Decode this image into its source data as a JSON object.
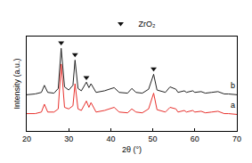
{
  "chart_data": {
    "type": "line",
    "x_label": "2θ (°)",
    "y_label": "Intensity (a.u.)",
    "xlim": [
      20,
      70
    ],
    "xticks": [
      20,
      30,
      40,
      50,
      60,
      70
    ],
    "ylim": [
      0,
      120
    ],
    "tick_labels": "x",
    "grid": false,
    "legend": "top",
    "x": [
      20,
      22,
      23.5,
      24.2,
      25,
      26.5,
      27.5,
      28.2,
      29,
      30,
      31,
      31.5,
      32.2,
      33,
      34.2,
      34.8,
      35.3,
      36.5,
      38.5,
      40.8,
      42,
      44,
      45,
      46,
      47.5,
      49,
      50.2,
      51,
      53,
      54.1,
      55.5,
      56,
      57.5,
      58,
      59.5,
      60,
      61.5,
      62.5,
      64,
      65.5,
      67,
      68,
      70
    ],
    "series": [
      {
        "name": "a",
        "color": "#e8302c",
        "type": "line",
        "values": [
          22,
          22,
          24,
          34,
          24,
          24,
          28,
          85,
          30,
          28,
          32,
          60,
          28,
          26,
          38,
          30,
          36,
          24,
          26,
          30,
          24,
          23,
          28,
          24,
          23,
          28,
          48,
          27,
          24,
          30,
          28,
          24,
          26,
          24,
          26,
          24,
          25,
          23,
          24,
          25,
          22,
          22,
          21
        ]
      },
      {
        "name": "b",
        "color": "#222222",
        "type": "line",
        "values": [
          46,
          47,
          49,
          58,
          49,
          48,
          54,
          105,
          56,
          52,
          58,
          90,
          54,
          51,
          62,
          55,
          60,
          49,
          51,
          55,
          49,
          48,
          54,
          49,
          48,
          53,
          72,
          52,
          49,
          56,
          53,
          49,
          51,
          49,
          51,
          49,
          50,
          48,
          49,
          50,
          47,
          47,
          46
        ]
      },
      {
        "name": "ZrO₂",
        "color": "#111111",
        "type": "scatter",
        "marker": "triangle-down",
        "x": [
          28.2,
          31.5,
          34.2,
          50.2
        ],
        "values": [
          112,
          97,
          68,
          79
        ]
      }
    ]
  }
}
